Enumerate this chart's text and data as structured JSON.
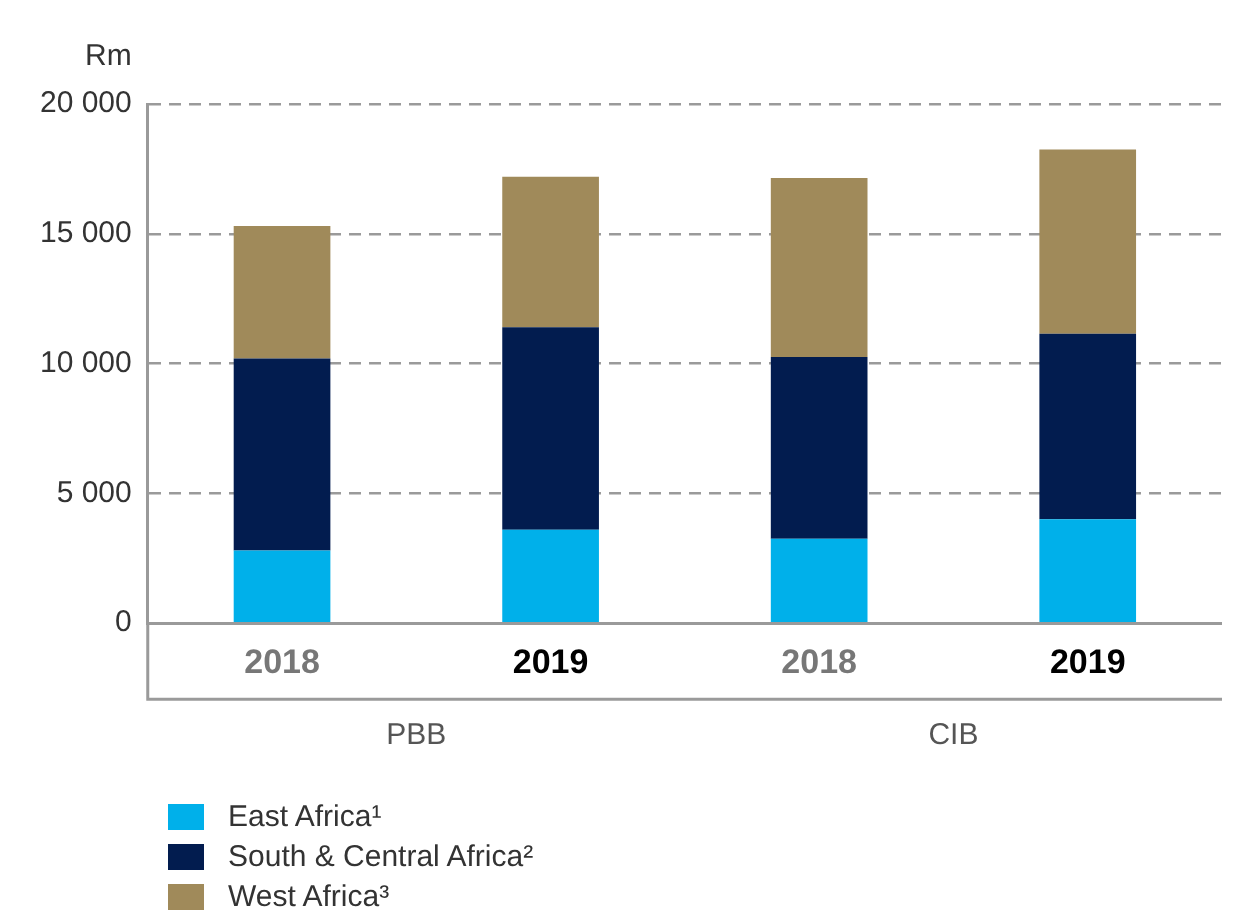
{
  "chart_data": {
    "type": "bar",
    "stacked": true,
    "ylabel": "Rm",
    "categories": [
      "2018",
      "2019",
      "2018",
      "2019"
    ],
    "series": [
      {
        "name": "East Africa¹",
        "color": "#00b0ea",
        "values": [
          2800,
          3600,
          3250,
          4000
        ]
      },
      {
        "name": "South & Central Africa²",
        "color": "#021c4f",
        "values": [
          7400,
          7800,
          7000,
          7150
        ]
      },
      {
        "name": "West Africa³",
        "color": "#a08a5a",
        "values": [
          5100,
          5800,
          6900,
          7100
        ]
      }
    ],
    "ylim": [
      0,
      20000
    ],
    "yticks": [
      0,
      {
        "value": 5000,
        "label": "5 000"
      },
      {
        "value": 10000,
        "label": "10 000"
      },
      {
        "value": 15000,
        "label": "15 000"
      },
      {
        "value": 20000,
        "label": "20 000"
      }
    ],
    "grid": "y",
    "legend": "bottom left",
    "annotations": [
      "PBB",
      "CIB"
    ]
  }
}
